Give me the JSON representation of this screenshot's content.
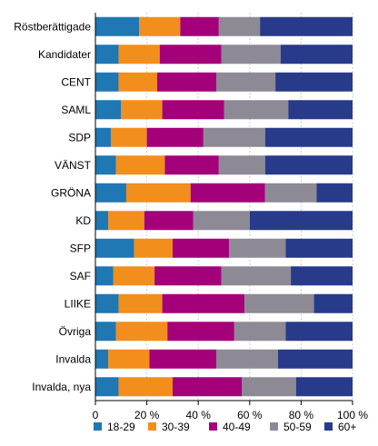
{
  "chart_data": {
    "type": "bar",
    "orientation": "horizontal",
    "stacked": "percent",
    "categories": [
      "Röstberättigade",
      "Kandidater",
      "CENT",
      "SAML",
      "SDP",
      "VÄNST",
      "GRÖNA",
      "KD",
      "SFP",
      "SAF",
      "LIIKE",
      "Övriga",
      "Invalda",
      "Invalda, nya"
    ],
    "series": [
      {
        "name": "18-29",
        "color": "#1f77b4",
        "values": [
          17,
          9,
          9,
          10,
          6,
          8,
          12,
          5,
          15,
          7,
          9,
          8,
          5,
          9
        ]
      },
      {
        "name": "30-39",
        "color": "#f28e1c",
        "values": [
          16,
          16,
          15,
          16,
          14,
          19,
          25,
          14,
          15,
          16,
          17,
          20,
          16,
          21
        ]
      },
      {
        "name": "40-49",
        "color": "#a4007a",
        "values": [
          15,
          24,
          23,
          24,
          22,
          21,
          29,
          19,
          22,
          26,
          32,
          26,
          26,
          27
        ]
      },
      {
        "name": "50-59",
        "color": "#8d8a96",
        "values": [
          16,
          23,
          23,
          25,
          24,
          18,
          20,
          22,
          22,
          27,
          27,
          20,
          24,
          21
        ]
      },
      {
        "name": "60+",
        "color": "#283a8a",
        "values": [
          36,
          28,
          30,
          25,
          34,
          34,
          14,
          40,
          26,
          24,
          15,
          26,
          29,
          22
        ]
      }
    ],
    "xlim": [
      0,
      100
    ],
    "xticks": [
      "0",
      "20 %",
      "40 %",
      "60 %",
      "80 %",
      "100 %"
    ],
    "grid": true,
    "legend": "bottom"
  }
}
